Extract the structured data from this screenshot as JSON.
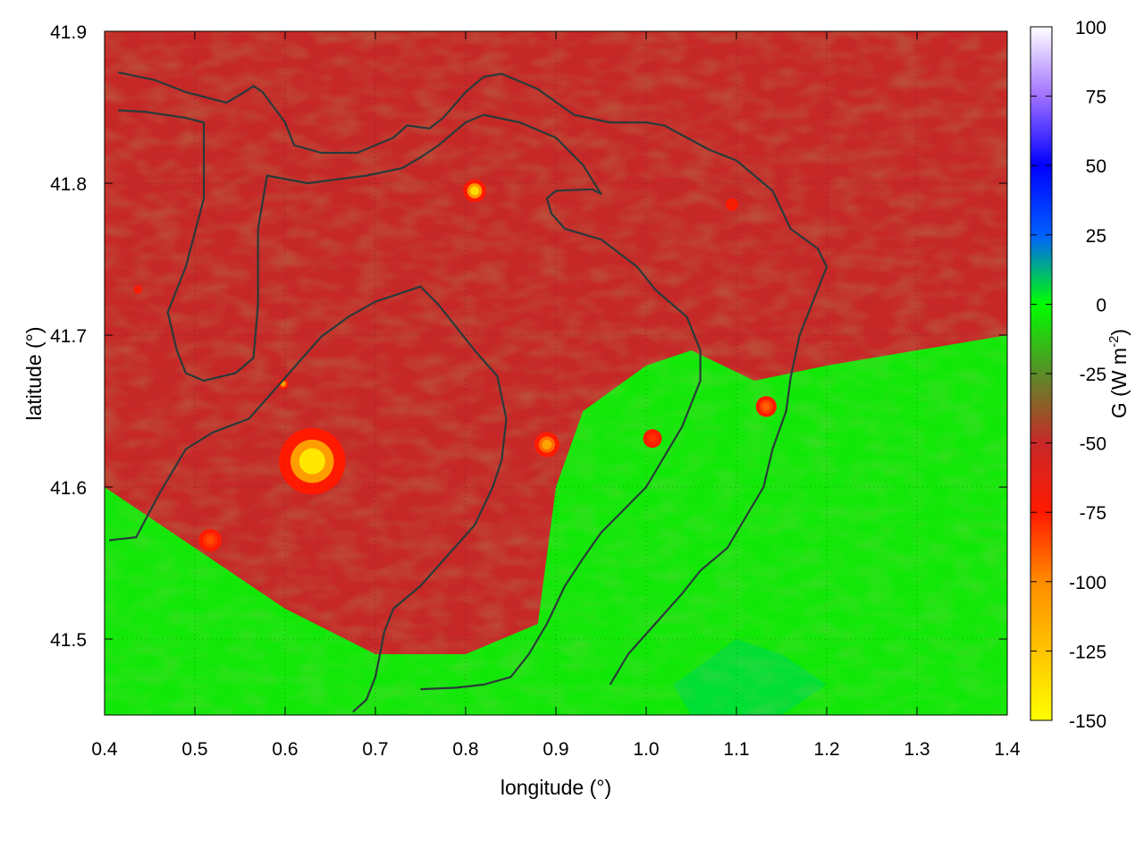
{
  "chart_data": {
    "type": "heatmap",
    "title": "",
    "xlabel": "longitude (°)",
    "ylabel": "latitude (°)",
    "colorbar_label_base": "G (W m",
    "colorbar_label_exp": "-2",
    "colorbar_label_tail": ")",
    "xlim": [
      0.4,
      1.4
    ],
    "ylim": [
      41.45,
      41.9
    ],
    "x_ticks": [
      0.4,
      0.5,
      0.6,
      0.7,
      0.8,
      0.9,
      1.0,
      1.1,
      1.2,
      1.3,
      1.4
    ],
    "x_tick_labels": [
      "0.4",
      "0.5",
      "0.6",
      "0.7",
      "0.8",
      "0.9",
      "1.0",
      "1.1",
      "1.2",
      "1.3",
      "1.4"
    ],
    "y_ticks": [
      41.5,
      41.6,
      41.7,
      41.8,
      41.9
    ],
    "y_tick_labels": [
      "41.5",
      "41.6",
      "41.7",
      "41.8",
      "41.9"
    ],
    "colorbar": {
      "range": [
        -150,
        100
      ],
      "ticks": [
        100,
        75,
        50,
        25,
        0,
        -25,
        -50,
        -75,
        -100,
        -125,
        -150
      ],
      "tick_labels": [
        "100",
        "75",
        "50",
        "25",
        "0",
        "-25",
        "-50",
        "-75",
        "-100",
        "-125",
        "-150"
      ],
      "stops": [
        {
          "v": -150,
          "c": "#ffff00"
        },
        {
          "v": -125,
          "c": "#ffc400"
        },
        {
          "v": -100,
          "c": "#ff8c00"
        },
        {
          "v": -75,
          "c": "#ff1a00"
        },
        {
          "v": -50,
          "c": "#c82828"
        },
        {
          "v": -25,
          "c": "#5a8c28"
        },
        {
          "v": 0,
          "c": "#00ff00"
        },
        {
          "v": 25,
          "c": "#0060ff"
        },
        {
          "v": 50,
          "c": "#0000ff"
        },
        {
          "v": 75,
          "c": "#a070ff"
        },
        {
          "v": 100,
          "c": "#ffffff"
        }
      ]
    },
    "grid": true,
    "contour_color": "#2a3a3a",
    "field": {
      "regions": [
        {
          "kind": "green-zone",
          "value": -5,
          "polygon": [
            [
              0.4,
              41.45
            ],
            [
              0.4,
              41.6
            ],
            [
              0.5,
              41.56
            ],
            [
              0.6,
              41.52
            ],
            [
              0.7,
              41.49
            ],
            [
              0.8,
              41.49
            ],
            [
              0.88,
              41.51
            ],
            [
              0.9,
              41.6
            ],
            [
              0.93,
              41.65
            ],
            [
              1.0,
              41.68
            ],
            [
              1.05,
              41.69
            ],
            [
              1.12,
              41.67
            ],
            [
              1.2,
              41.68
            ],
            [
              1.3,
              41.69
            ],
            [
              1.4,
              41.7
            ],
            [
              1.4,
              41.45
            ]
          ]
        },
        {
          "kind": "blue-green",
          "value": 5,
          "polygon": [
            [
              1.03,
              41.47
            ],
            [
              1.1,
              41.5
            ],
            [
              1.15,
              41.49
            ],
            [
              1.2,
              41.47
            ],
            [
              1.15,
              41.45
            ],
            [
              1.05,
              41.45
            ]
          ]
        }
      ],
      "hotspots": [
        {
          "lon": 0.63,
          "lat": 41.617,
          "r": 0.032,
          "value": -140
        },
        {
          "lon": 0.81,
          "lat": 41.795,
          "r": 0.011,
          "value": -135
        },
        {
          "lon": 0.89,
          "lat": 41.628,
          "r": 0.012,
          "value": -110
        },
        {
          "lon": 0.517,
          "lat": 41.565,
          "r": 0.011,
          "value": -85
        },
        {
          "lon": 1.007,
          "lat": 41.632,
          "r": 0.009,
          "value": -80
        },
        {
          "lon": 1.133,
          "lat": 41.653,
          "r": 0.01,
          "value": -90
        },
        {
          "lon": 0.598,
          "lat": 41.668,
          "r": 0.005,
          "value": -110
        },
        {
          "lon": 1.095,
          "lat": 41.786,
          "r": 0.006,
          "value": -70
        },
        {
          "lon": 0.437,
          "lat": 41.73,
          "r": 0.004,
          "value": -70
        }
      ]
    },
    "contours": [
      [
        [
          0.415,
          41.873
        ],
        [
          0.455,
          41.868
        ],
        [
          0.49,
          41.86
        ],
        [
          0.535,
          41.853
        ],
        [
          0.555,
          41.86
        ],
        [
          0.565,
          41.864
        ],
        [
          0.575,
          41.86
        ],
        [
          0.6,
          41.84
        ],
        [
          0.61,
          41.825
        ],
        [
          0.64,
          41.82
        ],
        [
          0.68,
          41.82
        ],
        [
          0.72,
          41.83
        ],
        [
          0.735,
          41.838
        ],
        [
          0.76,
          41.836
        ],
        [
          0.775,
          41.843
        ],
        [
          0.8,
          41.86
        ],
        [
          0.82,
          41.87
        ],
        [
          0.84,
          41.872
        ],
        [
          0.88,
          41.862
        ],
        [
          0.92,
          41.845
        ],
        [
          0.96,
          41.84
        ],
        [
          1.0,
          41.84
        ],
        [
          1.02,
          41.838
        ],
        [
          1.07,
          41.822
        ],
        [
          1.1,
          41.815
        ],
        [
          1.14,
          41.795
        ],
        [
          1.16,
          41.77
        ],
        [
          1.19,
          41.757
        ],
        [
          1.2,
          41.745
        ],
        [
          1.19,
          41.73
        ],
        [
          1.17,
          41.7
        ],
        [
          1.16,
          41.672
        ],
        [
          1.155,
          41.65
        ],
        [
          1.14,
          41.625
        ],
        [
          1.13,
          41.6
        ],
        [
          1.11,
          41.58
        ],
        [
          1.09,
          41.56
        ],
        [
          1.06,
          41.545
        ],
        [
          1.04,
          41.53
        ],
        [
          1.01,
          41.51
        ],
        [
          0.98,
          41.49
        ],
        [
          0.96,
          41.47
        ]
      ],
      [
        [
          0.415,
          41.848
        ],
        [
          0.445,
          41.847
        ],
        [
          0.49,
          41.843
        ],
        [
          0.51,
          41.84
        ],
        [
          0.51,
          41.79
        ],
        [
          0.49,
          41.745
        ],
        [
          0.47,
          41.715
        ],
        [
          0.48,
          41.69
        ],
        [
          0.49,
          41.675
        ],
        [
          0.51,
          41.67
        ],
        [
          0.545,
          41.675
        ],
        [
          0.565,
          41.685
        ],
        [
          0.57,
          41.72
        ],
        [
          0.57,
          41.77
        ],
        [
          0.58,
          41.805
        ],
        [
          0.625,
          41.8
        ],
        [
          0.69,
          41.805
        ],
        [
          0.73,
          41.81
        ],
        [
          0.75,
          41.817
        ],
        [
          0.77,
          41.825
        ],
        [
          0.8,
          41.84
        ],
        [
          0.82,
          41.845
        ],
        [
          0.86,
          41.84
        ],
        [
          0.9,
          41.83
        ],
        [
          0.93,
          41.812
        ],
        [
          0.95,
          41.793
        ],
        [
          0.94,
          41.796
        ],
        [
          0.9,
          41.795
        ],
        [
          0.89,
          41.79
        ],
        [
          0.895,
          41.78
        ],
        [
          0.91,
          41.77
        ],
        [
          0.95,
          41.763
        ],
        [
          0.99,
          41.745
        ],
        [
          1.01,
          41.73
        ],
        [
          1.045,
          41.712
        ],
        [
          1.06,
          41.69
        ],
        [
          1.06,
          41.67
        ],
        [
          1.04,
          41.64
        ],
        [
          1.02,
          41.62
        ],
        [
          1.0,
          41.6
        ],
        [
          0.975,
          41.585
        ],
        [
          0.95,
          41.57
        ],
        [
          0.93,
          41.553
        ],
        [
          0.91,
          41.535
        ],
        [
          0.89,
          41.51
        ],
        [
          0.87,
          41.49
        ],
        [
          0.85,
          41.475
        ],
        [
          0.82,
          41.47
        ],
        [
          0.79,
          41.468
        ],
        [
          0.75,
          41.467
        ]
      ],
      [
        [
          0.405,
          41.565
        ],
        [
          0.435,
          41.567
        ],
        [
          0.46,
          41.595
        ],
        [
          0.49,
          41.625
        ],
        [
          0.52,
          41.636
        ],
        [
          0.56,
          41.645
        ],
        [
          0.6,
          41.672
        ],
        [
          0.64,
          41.699
        ],
        [
          0.67,
          41.712
        ],
        [
          0.7,
          41.722
        ],
        [
          0.73,
          41.728
        ],
        [
          0.75,
          41.732
        ],
        [
          0.77,
          41.72
        ],
        [
          0.81,
          41.69
        ],
        [
          0.835,
          41.673
        ],
        [
          0.845,
          41.645
        ],
        [
          0.84,
          41.618
        ],
        [
          0.83,
          41.6
        ],
        [
          0.81,
          41.575
        ],
        [
          0.78,
          41.555
        ],
        [
          0.75,
          41.535
        ],
        [
          0.72,
          41.52
        ],
        [
          0.71,
          41.505
        ],
        [
          0.705,
          41.49
        ],
        [
          0.7,
          41.475
        ],
        [
          0.69,
          41.46
        ],
        [
          0.675,
          41.452
        ]
      ]
    ]
  }
}
